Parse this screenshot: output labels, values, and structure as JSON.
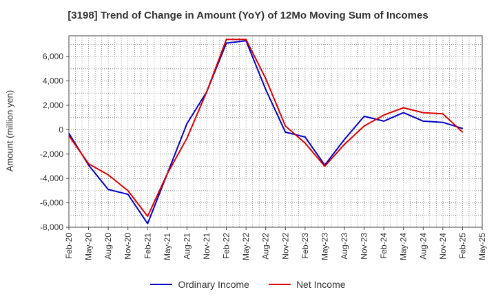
{
  "chart_data": {
    "type": "line",
    "title": "[3198]  Trend of Change in Amount (YoY) of 12Mo Moving Sum of Incomes",
    "xlabel": "",
    "ylabel": "Amount (million yen)",
    "ylim": [
      -8000,
      7700
    ],
    "yticks": [
      -8000,
      -6000,
      -4000,
      -2000,
      0,
      2000,
      4000,
      6000
    ],
    "ytick_labels": [
      "-8,000",
      "-6,000",
      "-4,000",
      "-2,000",
      "0",
      "2,000",
      "4,000",
      "6,000"
    ],
    "x_ticks": [
      "Feb-20",
      "May-20",
      "Aug-20",
      "Nov-20",
      "Feb-21",
      "May-21",
      "Aug-21",
      "Nov-21",
      "Feb-22",
      "May-22",
      "Aug-22",
      "Nov-22",
      "Feb-23",
      "May-23",
      "Aug-23",
      "Nov-23",
      "Feb-24",
      "May-24",
      "Aug-24",
      "Nov-24",
      "Feb-25",
      "May-25"
    ],
    "categories": [
      "Feb-20",
      "May-20",
      "Aug-20",
      "Nov-20",
      "Feb-21",
      "May-21",
      "Aug-21",
      "Nov-21",
      "Feb-22",
      "May-22",
      "Aug-22",
      "Nov-22",
      "Feb-23",
      "May-23",
      "Aug-23",
      "Nov-23",
      "Feb-24",
      "May-24",
      "Aug-24",
      "Nov-24",
      "Feb-25"
    ],
    "grid": true,
    "legend_position": "bottom",
    "series": [
      {
        "name": "Ordinary Income",
        "color": "#0000cc",
        "values": [
          -300,
          -2900,
          -4900,
          -5300,
          -7700,
          -3600,
          500,
          3100,
          7100,
          7300,
          3300,
          -200,
          -600,
          -2900,
          -800,
          1100,
          700,
          1400,
          700,
          600,
          100
        ]
      },
      {
        "name": "Net Income",
        "color": "#dd0000",
        "values": [
          -500,
          -2800,
          -3700,
          -5000,
          -7100,
          -3600,
          -700,
          3100,
          7400,
          7400,
          4200,
          300,
          -1100,
          -3000,
          -1200,
          300,
          1200,
          1800,
          1400,
          1300,
          -200
        ]
      }
    ]
  }
}
